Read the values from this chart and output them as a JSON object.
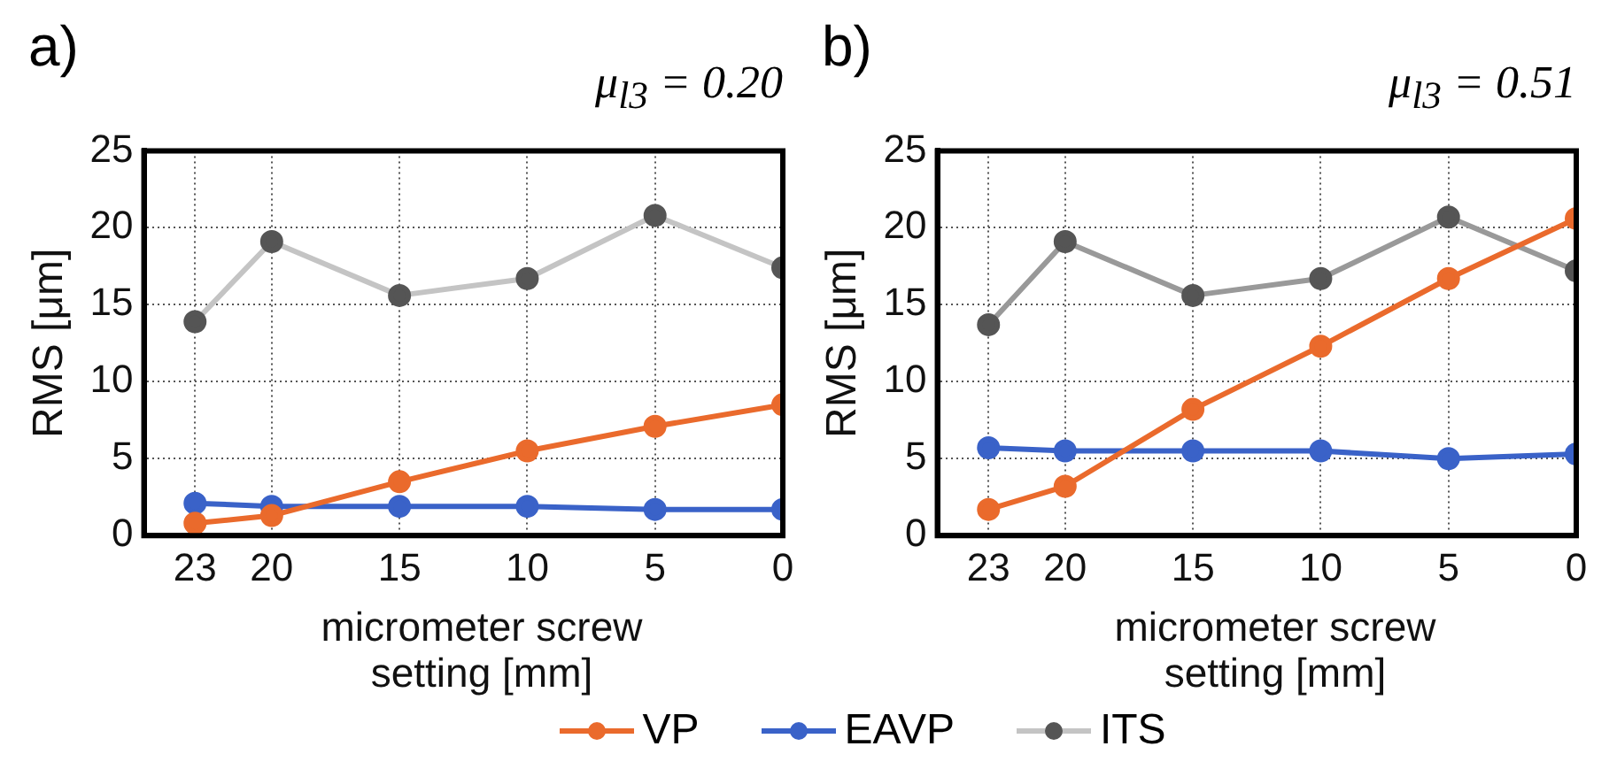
{
  "chart_data": [
    {
      "type": "line",
      "title": "a)",
      "subtitle": "μ$_{l3}$ = 0.20",
      "xlabel": "micrometer screw setting [mm]",
      "ylabel": "RMS [μm]",
      "x": [
        23,
        20,
        15,
        10,
        5,
        0
      ],
      "xlim": [
        25,
        0
      ],
      "xticks": [
        23,
        20,
        15,
        10,
        5,
        0
      ],
      "ylim": [
        0,
        25
      ],
      "yticks": [
        0,
        5,
        10,
        15,
        20,
        25
      ],
      "grid": true,
      "legend": "bottom",
      "marker": "circle",
      "line_style": "solid",
      "series": [
        {
          "name": "VP",
          "color": "#ea6a2c",
          "values": [
            0.8,
            1.3,
            3.5,
            5.5,
            7.1,
            8.5
          ]
        },
        {
          "name": "EAVP",
          "color": "#3a62c8",
          "values": [
            2.1,
            1.9,
            1.9,
            1.9,
            1.7,
            1.7
          ]
        },
        {
          "name": "ITS",
          "color": "#c4c4c4",
          "colors": [
            "#555555",
            "#555555",
            "#555555",
            "#555555",
            "#555555",
            "#555555"
          ],
          "values": [
            13.9,
            19.1,
            15.6,
            16.7,
            20.8,
            17.4
          ]
        }
      ]
    },
    {
      "type": "line",
      "title": "b)",
      "subtitle": "μ$_{l3}$ = 0.51",
      "xlabel": "micrometer screw setting [mm]",
      "ylabel": "RMS [μm]",
      "x": [
        23,
        20,
        15,
        10,
        5,
        0
      ],
      "xlim": [
        25,
        0
      ],
      "xticks": [
        23,
        20,
        15,
        10,
        5,
        0
      ],
      "ylim": [
        0,
        25
      ],
      "yticks": [
        0,
        5,
        10,
        15,
        20,
        25
      ],
      "grid": true,
      "marker": "circle",
      "line_style": "solid",
      "series": [
        {
          "color": "#ea6a2c",
          "values": [
            1.7,
            3.2,
            8.2,
            12.3,
            16.7,
            20.6
          ]
        },
        {
          "color": "#3a62c8",
          "values": [
            5.7,
            5.5,
            5.5,
            5.5,
            5.0,
            5.3
          ]
        },
        {
          "color": "#999999",
          "colors": [
            "#555555",
            "#555555",
            "#555555",
            "#555555",
            "#555555",
            "#555555"
          ],
          "values": [
            13.7,
            19.1,
            15.6,
            16.7,
            20.7,
            17.2
          ]
        }
      ]
    }
  ]
}
